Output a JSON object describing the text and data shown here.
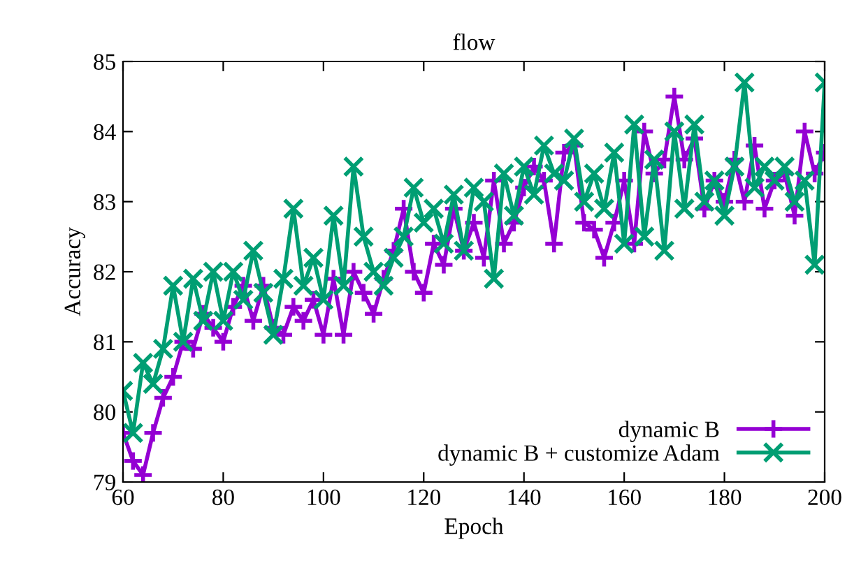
{
  "chart_data": {
    "type": "line",
    "title": "flow",
    "xlabel": "Epoch",
    "ylabel": "Accuracy",
    "x": [
      60,
      62,
      64,
      66,
      68,
      70,
      72,
      74,
      76,
      78,
      80,
      82,
      84,
      86,
      88,
      90,
      92,
      94,
      96,
      98,
      100,
      102,
      104,
      106,
      108,
      110,
      112,
      114,
      116,
      118,
      120,
      122,
      124,
      126,
      128,
      130,
      132,
      134,
      136,
      138,
      140,
      142,
      144,
      146,
      148,
      150,
      152,
      154,
      156,
      158,
      160,
      162,
      164,
      166,
      168,
      170,
      172,
      174,
      176,
      178,
      180,
      182,
      184,
      186,
      188,
      190,
      192,
      194,
      196,
      198,
      200
    ],
    "series": [
      {
        "name": "dynamic B",
        "color": "#9400d3",
        "marker": "plus",
        "values": [
          79.7,
          79.3,
          79.1,
          79.7,
          80.2,
          80.5,
          81.0,
          80.9,
          81.4,
          81.2,
          81.0,
          81.5,
          81.8,
          81.3,
          81.8,
          81.2,
          81.1,
          81.5,
          81.3,
          81.6,
          81.1,
          81.9,
          81.1,
          82.0,
          81.7,
          81.4,
          81.9,
          82.3,
          82.9,
          82.0,
          81.7,
          82.4,
          82.1,
          82.9,
          82.3,
          82.7,
          82.2,
          83.3,
          82.4,
          82.7,
          83.2,
          83.5,
          83.3,
          82.4,
          83.7,
          83.8,
          82.7,
          82.6,
          82.2,
          82.7,
          83.3,
          82.4,
          84.0,
          83.4,
          83.6,
          84.5,
          83.6,
          83.9,
          82.9,
          83.3,
          83.0,
          83.6,
          83.0,
          83.8,
          82.9,
          83.3,
          83.4,
          82.8,
          84.0,
          83.4,
          83.7
        ]
      },
      {
        "name": "dynamic B + customize Adam",
        "color": "#009e73",
        "marker": "cross",
        "values": [
          80.3,
          79.7,
          80.7,
          80.4,
          80.9,
          81.8,
          81.0,
          81.9,
          81.3,
          82.0,
          81.3,
          82.0,
          81.6,
          82.3,
          81.7,
          81.1,
          81.9,
          82.9,
          81.8,
          82.2,
          81.6,
          82.8,
          81.8,
          83.5,
          82.5,
          82.0,
          81.8,
          82.2,
          82.5,
          83.2,
          82.7,
          82.9,
          82.4,
          83.1,
          82.3,
          83.2,
          83.0,
          81.9,
          83.4,
          82.8,
          83.5,
          83.1,
          83.8,
          83.4,
          83.3,
          83.9,
          83.0,
          83.4,
          82.9,
          83.7,
          82.4,
          84.1,
          82.5,
          83.6,
          82.3,
          84.0,
          82.9,
          84.1,
          83.0,
          83.3,
          82.8,
          83.5,
          84.7,
          83.2,
          83.5,
          83.3,
          83.5,
          83.0,
          83.3,
          82.1,
          84.7
        ]
      }
    ],
    "xlim": [
      60,
      200
    ],
    "xticks": [
      60,
      80,
      100,
      120,
      140,
      160,
      180,
      200
    ],
    "ylim": [
      79,
      85
    ],
    "yticks": [
      79,
      80,
      81,
      82,
      83,
      84,
      85
    ],
    "grid": false,
    "legend": "bottom right",
    "line_style": "solid"
  }
}
